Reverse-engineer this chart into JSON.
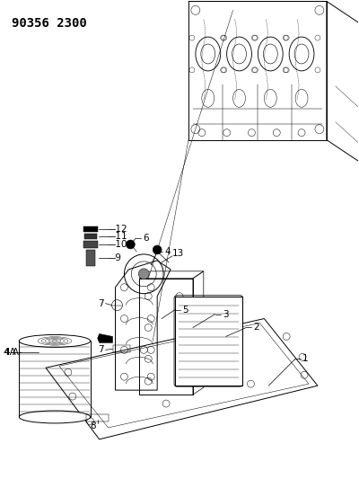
{
  "title": "90356 2300",
  "title_fontsize": 10,
  "title_fontweight": "bold",
  "bg_color": "#ffffff",
  "lc": "#000000",
  "fig_width": 4.0,
  "fig_height": 5.33,
  "dpi": 100
}
